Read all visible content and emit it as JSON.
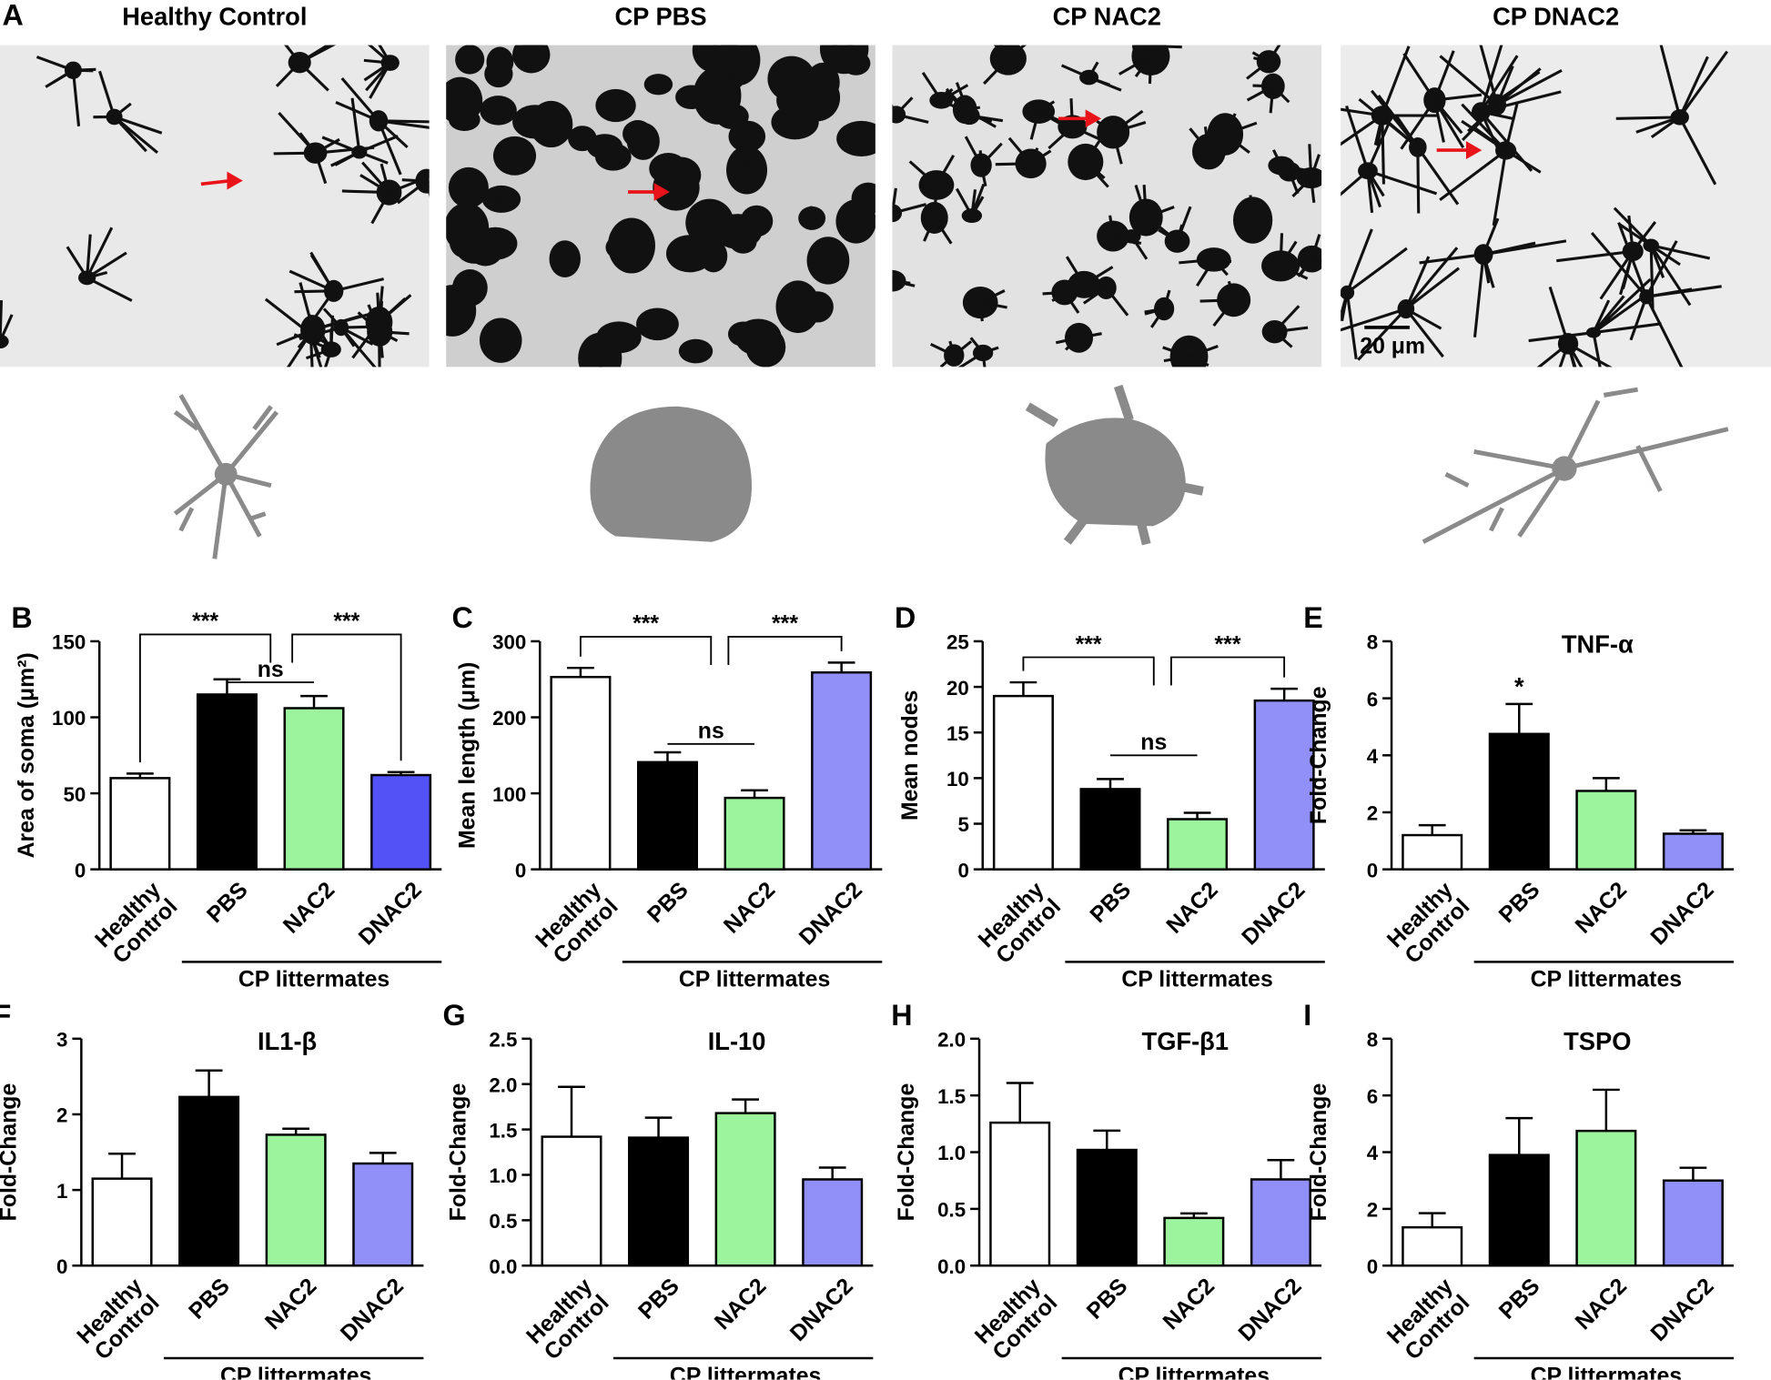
{
  "panel_a": {
    "label": "A",
    "images": [
      {
        "title": "Healthy Control"
      },
      {
        "title": "CP PBS"
      },
      {
        "title": "CP NAC2"
      },
      {
        "title": "CP DNAC2"
      }
    ],
    "scale_bar": "20 μm"
  },
  "chart_data": [
    {
      "panel": "B",
      "type": "bar",
      "ylabel": "Area of soma (μm²)",
      "categories": [
        "Healthy Control",
        "PBS",
        "NAC2",
        "DNAC2"
      ],
      "group_label": "CP littermates",
      "values": [
        60,
        115,
        106,
        62
      ],
      "errors": [
        3,
        10,
        8,
        2
      ],
      "colors": [
        "#ffffff",
        "#000000",
        "#9cf59c",
        "#5252f7"
      ],
      "ylim": [
        0,
        150
      ],
      "yticks": [
        0,
        50,
        100,
        150
      ],
      "annotations": [
        {
          "text": "***"
        },
        {
          "text": "ns"
        },
        {
          "text": "***"
        }
      ]
    },
    {
      "panel": "C",
      "type": "bar",
      "ylabel": "Mean length (μm)",
      "categories": [
        "Healthy Control",
        "PBS",
        "NAC2",
        "DNAC2"
      ],
      "group_label": "CP littermates",
      "values": [
        253,
        141,
        94,
        259
      ],
      "errors": [
        12,
        13,
        10,
        13
      ],
      "colors": [
        "#ffffff",
        "#000000",
        "#9cf59c",
        "#9090f8"
      ],
      "ylim": [
        0,
        300
      ],
      "yticks": [
        0,
        100,
        200,
        300
      ],
      "annotations": [
        {
          "text": "***"
        },
        {
          "text": "ns"
        },
        {
          "text": "***"
        }
      ]
    },
    {
      "panel": "D",
      "type": "bar",
      "ylabel": "Mean nodes",
      "categories": [
        "Healthy Control",
        "PBS",
        "NAC2",
        "DNAC2"
      ],
      "group_label": "CP littermates",
      "values": [
        19,
        8.8,
        5.5,
        18.5
      ],
      "errors": [
        1.5,
        1.1,
        0.7,
        1.3
      ],
      "colors": [
        "#ffffff",
        "#000000",
        "#9cf59c",
        "#9090f8"
      ],
      "ylim": [
        0,
        25
      ],
      "yticks": [
        0,
        5,
        10,
        15,
        20,
        25
      ],
      "annotations": [
        {
          "text": "***"
        },
        {
          "text": "ns"
        },
        {
          "text": "***"
        }
      ]
    },
    {
      "panel": "E",
      "type": "bar",
      "title": "TNF-α",
      "ylabel": "Fold-Change",
      "categories": [
        "Healthy Control",
        "PBS",
        "NAC2",
        "DNAC2"
      ],
      "group_label": "CP littermates",
      "values": [
        1.2,
        4.75,
        2.75,
        1.25
      ],
      "errors": [
        0.35,
        1.05,
        0.45,
        0.12
      ],
      "colors": [
        "#ffffff",
        "#000000",
        "#9cf59c",
        "#9090f8"
      ],
      "ylim": [
        0,
        8
      ],
      "yticks": [
        0,
        2,
        4,
        6,
        8
      ],
      "annotations": [
        {
          "text": "*"
        }
      ]
    },
    {
      "panel": "F",
      "type": "bar",
      "title": "IL1-β",
      "ylabel": "Fold-Change",
      "categories": [
        "Healthy Control",
        "PBS",
        "NAC2",
        "DNAC2"
      ],
      "group_label": "CP littermates",
      "values": [
        1.15,
        2.23,
        1.73,
        1.35
      ],
      "errors": [
        0.33,
        0.35,
        0.08,
        0.14
      ],
      "colors": [
        "#ffffff",
        "#000000",
        "#9cf59c",
        "#9090f8"
      ],
      "ylim": [
        0,
        3
      ],
      "yticks": [
        0,
        1,
        2,
        3
      ]
    },
    {
      "panel": "G",
      "type": "bar",
      "title": "IL-10",
      "ylabel": "Fold-Change",
      "categories": [
        "Healthy Control",
        "PBS",
        "NAC2",
        "DNAC2"
      ],
      "group_label": "CP littermates",
      "values": [
        1.42,
        1.41,
        1.68,
        0.95
      ],
      "errors": [
        0.55,
        0.22,
        0.15,
        0.13
      ],
      "colors": [
        "#ffffff",
        "#000000",
        "#9cf59c",
        "#9090f8"
      ],
      "ylim": [
        0,
        2.5
      ],
      "yticks": [
        {
          "value": 0,
          "label": "0.0"
        },
        0.5,
        {
          "value": 1,
          "label": "1.0"
        },
        1.5,
        {
          "value": 2,
          "label": "2.0"
        },
        2.5
      ]
    },
    {
      "panel": "H",
      "type": "bar",
      "title": "TGF-β1",
      "ylabel": "Fold-Change",
      "categories": [
        "Healthy Control",
        "PBS",
        "NAC2",
        "DNAC2"
      ],
      "group_label": "CP littermates",
      "values": [
        1.26,
        1.02,
        0.42,
        0.76
      ],
      "errors": [
        0.35,
        0.17,
        0.04,
        0.17
      ],
      "colors": [
        "#ffffff",
        "#000000",
        "#9cf59c",
        "#9090f8"
      ],
      "ylim": [
        0,
        2
      ],
      "yticks": [
        {
          "value": 0,
          "label": "0.0"
        },
        0.5,
        {
          "value": 1,
          "label": "1.0"
        },
        1.5,
        {
          "value": 2,
          "label": "2.0"
        }
      ]
    },
    {
      "panel": "I",
      "type": "bar",
      "title": "TSPO",
      "ylabel": "Fold-Change",
      "categories": [
        "Healthy Control",
        "PBS",
        "NAC2",
        "DNAC2"
      ],
      "group_label": "CP littermates",
      "values": [
        1.35,
        3.9,
        4.75,
        3.0
      ],
      "errors": [
        0.5,
        1.3,
        1.45,
        0.45
      ],
      "colors": [
        "#ffffff",
        "#000000",
        "#9cf59c",
        "#9090f8"
      ],
      "ylim": [
        0,
        8
      ],
      "yticks": [
        0,
        2,
        4,
        6,
        8
      ]
    }
  ]
}
